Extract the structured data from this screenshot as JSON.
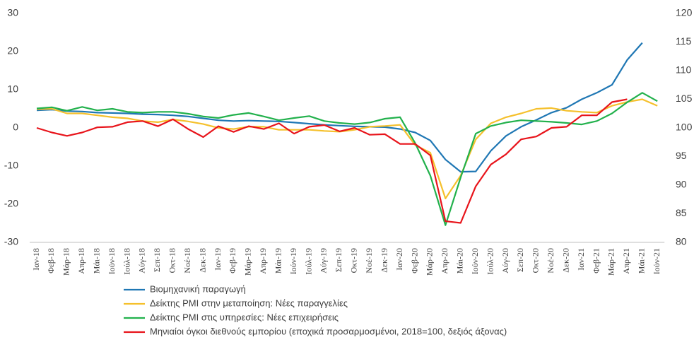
{
  "chart_data": {
    "type": "line",
    "categories": [
      "Ιαν-18",
      "Φεβ-18",
      "Μάρ-18",
      "Απρ-18",
      "Μάι-18",
      "Ιούν-18",
      "Ιούλ-18",
      "Αύγ-18",
      "Σεπ-18",
      "Οκτ-18",
      "Νοέ-18",
      "Δεκ-18",
      "Ιαν-19",
      "Φεβ-19",
      "Μάρ-19",
      "Απρ-19",
      "Μάι-19",
      "Ιούν-19",
      "Ιούλ-19",
      "Αύγ-19",
      "Σεπ-19",
      "Οκτ-19",
      "Νοέ-19",
      "Δεκ-19",
      "Ιαν-20",
      "Φεβ-20",
      "Μάρ-20",
      "Απρ-20",
      "Μάι-20",
      "Ιούν-20",
      "Ιούλ-20",
      "Αύγ-20",
      "Σεπ-20",
      "Οκτ-20",
      "Νοέ-20",
      "Δεκ-20",
      "Ιαν-21",
      "Φεβ-21",
      "Μάρ-21",
      "Απρ-21",
      "Μάι-21",
      "Ιούν-21"
    ],
    "series": [
      {
        "name": "Βιομηχανική παραγωγή",
        "color": "#1f77b4",
        "values": [
          4.6,
          4.8,
          4.4,
          4.3,
          4.0,
          3.9,
          3.8,
          3.6,
          3.5,
          3.3,
          3.0,
          2.5,
          2.0,
          1.8,
          1.9,
          1.8,
          1.7,
          1.4,
          1.1,
          0.8,
          0.6,
          0.4,
          0.3,
          0.2,
          -0.3,
          -1.2,
          -3.3,
          -8.3,
          -11.5,
          -11.4,
          -6,
          -2.1,
          0.3,
          2.1,
          4.0,
          5.3,
          7.5,
          9.2,
          11.3,
          17.8,
          22.3,
          null
        ]
      },
      {
        "name": "Δείκτης PMI στην μεταποίηση: Νέες παραγγελίες",
        "color": "#f5c02c",
        "values": [
          4.9,
          5.0,
          3.8,
          3.8,
          3.3,
          2.8,
          2.5,
          1.8,
          1.5,
          2.2,
          1.7,
          1.0,
          0.0,
          -0.3,
          0.3,
          0.3,
          -0.5,
          -0.5,
          -0.5,
          -0.8,
          -1.0,
          -0.5,
          0.3,
          0.5,
          0.8,
          -4.5,
          -6.5,
          -18.5,
          -12.5,
          -3.0,
          1.2,
          2.8,
          3.8,
          5.0,
          5.2,
          4.5,
          4.2,
          4.0,
          5.8,
          6.8,
          7.5,
          5.8
        ]
      },
      {
        "name": "Δείκτης PMI στις υπηρεσίες: Νέες επιχειρήσεις",
        "color": "#22b14c",
        "values": [
          5.1,
          5.4,
          4.5,
          5.5,
          4.6,
          5.0,
          4.2,
          4.0,
          4.2,
          4.2,
          3.7,
          3.0,
          2.6,
          3.4,
          3.9,
          3.0,
          2.0,
          2.6,
          3.1,
          1.8,
          1.3,
          1.0,
          1.4,
          2.4,
          2.8,
          -4.0,
          -12.5,
          -25.5,
          -13,
          -1.5,
          0.5,
          1.4,
          2.0,
          1.8,
          1.6,
          1.3,
          0.9,
          1.8,
          3.8,
          6.7,
          9.2,
          7.0
        ]
      },
      {
        "name": "Μηνιαίοι όγκοι διεθνούς εμπορίου (εποχικά προσαρμοσμένοι, 2018=100, δεξιός άξονας)",
        "color": "#e8141b",
        "axis": "y2",
        "values": [
          100.0,
          99.2,
          98.6,
          99.2,
          100.1,
          100.2,
          101.0,
          101.2,
          100.3,
          101.5,
          99.8,
          98.4,
          100.3,
          99.3,
          100.3,
          99.8,
          100.8,
          99.0,
          100.2,
          100.5,
          99.4,
          100.0,
          98.8,
          98.9,
          97.2,
          97.2,
          95.2,
          83.7,
          83.4,
          89.8,
          93.6,
          95.4,
          98.0,
          98.5,
          100.0,
          100.2,
          102.2,
          102.2,
          104.5,
          105.0,
          null,
          null
        ]
      }
    ],
    "ylim": [
      -30,
      30
    ],
    "yticks": [
      -30,
      -20,
      -10,
      0,
      10,
      20,
      30
    ],
    "y2lim": [
      80,
      120
    ],
    "y2ticks": [
      80,
      85,
      90,
      95,
      100,
      105,
      110,
      115,
      120
    ]
  }
}
